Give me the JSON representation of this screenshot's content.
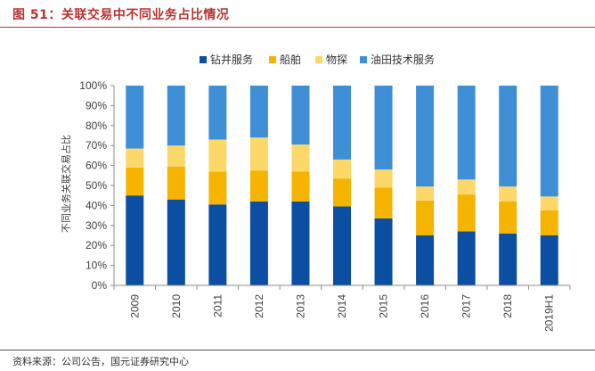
{
  "header": {
    "title": "图 51：关联交易中不同业务占比情况"
  },
  "footer": {
    "source": "资料来源：公司公告，国元证券研究中心"
  },
  "colors": {
    "title": "#b8322f",
    "series": [
      "#0b4ea2",
      "#f4b400",
      "#fdd869",
      "#3f8fd6"
    ]
  },
  "chart_data": {
    "type": "bar",
    "stacked": true,
    "percent": true,
    "categories": [
      "2009",
      "2010",
      "2011",
      "2012",
      "2013",
      "2014",
      "2015",
      "2016",
      "2017",
      "2018",
      "2019H1"
    ],
    "series": [
      {
        "name": "钻井服务",
        "values": [
          45,
          43,
          40.5,
          42,
          42,
          39.5,
          33.5,
          25,
          27,
          26,
          25
        ]
      },
      {
        "name": "船舶",
        "values": [
          14,
          16.5,
          16.5,
          15.5,
          15,
          14,
          15.5,
          17.5,
          18.5,
          16,
          12.5
        ]
      },
      {
        "name": "物探",
        "values": [
          9.5,
          10.5,
          16,
          16.5,
          13.5,
          9.5,
          9,
          7,
          7.5,
          7.5,
          7
        ]
      },
      {
        "name": "油田技术服务",
        "values": [
          31.5,
          30,
          27,
          26,
          29.5,
          37,
          42,
          50.5,
          47,
          50.5,
          55.5
        ]
      }
    ],
    "ylabel": "不同业务关联交易占比",
    "ylim": [
      0,
      100
    ],
    "yticks": [
      "0%",
      "10%",
      "20%",
      "30%",
      "40%",
      "50%",
      "60%",
      "70%",
      "80%",
      "90%",
      "100%"
    ],
    "legend_position": "top",
    "grid": false
  }
}
